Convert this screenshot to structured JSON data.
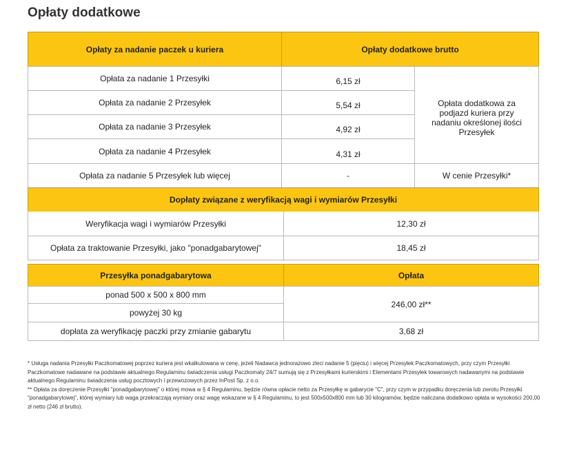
{
  "title": "Opłaty dodatkowe",
  "table1": {
    "header": [
      "Opłaty za nadanie paczek u kuriera",
      "Opłaty dodatkowe brutto"
    ],
    "rows": [
      [
        "Opłata za nadanie 1 Przesyłki",
        "6,15 zł"
      ],
      [
        "Opłata za nadanie 2 Przesyłek",
        "5,54 zł"
      ],
      [
        "Opłata za nadanie 3 Przesyłek",
        "4,92 zł"
      ],
      [
        "Opłata za nadanie 4 Przesyłek",
        "4,31 zł"
      ]
    ],
    "merged_note": "Opłata dodatkowa za podjazd kuriera przy nadaniu określonej ilości Przesyłek",
    "last_row": [
      "Opłata za nadanie 5 Przesyłek lub więcej",
      "-",
      "W cenie Przesyłki*"
    ]
  },
  "table2": {
    "header": "Dopłaty związane z weryfikacją wagi i wymiarów Przesyłki",
    "rows": [
      [
        "Weryfikacja wagi i wymiarów Przesyłki",
        "12,30 zł"
      ],
      [
        "Opłata za traktowanie Przesyłki, jako \"ponadgabarytowej\"",
        "18,45 zł"
      ]
    ]
  },
  "table3": {
    "header": [
      "Przesyłka ponadgabarytowa",
      "Opłata"
    ],
    "rows": [
      [
        "ponad 500 x 500 x 800 mm"
      ],
      [
        "powyżej 30 kg"
      ],
      [
        "dopłata za weryfikację paczki przy zmianie gabarytu",
        "3,68 zł"
      ]
    ],
    "merged_price": "246,00 zł**"
  },
  "footnotes": [
    "* Usługa nadania Przesyłki Paczkomatowej poprzez kuriera jest wkalkulowana w cenę, jeżeli Nadawca jednorazowo zleci nadanie 5 (pięciu) i więcej Przesyłek Paczkomatowych, przy czym Przesyłki Paczkomatowe nadawane na podstawie aktualnego Regulaminu świadczenia usługi Paczkomaty 24/7 sumują się z Przesyłkami kurierskimi i Elementami Przesyłek towarowych nadawanymi na podstawie aktualnego Regulaminu świadczenia usług pocztowych i przewozowych przez InPost Sp. z o.o.",
    "** Opłata za doręczenie Przesyłki \"ponadgabarytowej\" o której mowa w § 4 Regulaminu, będzie równa opłacie netto za Przesyłkę w gabarycie \"C\", przy czym w przypadku doręczenia lub zwrotu Przesyłki \"ponadgabarytowej\", której wymiary lub waga przekraczają wymiary oraz wagę wskazane w § 4 Regulaminu, to jest 500x500x800 mm lub 30 kilogramów, będzie naliczana dodatkowo opłata w wysokości 200,00 zł netto (246 zł brutto)."
  ]
}
